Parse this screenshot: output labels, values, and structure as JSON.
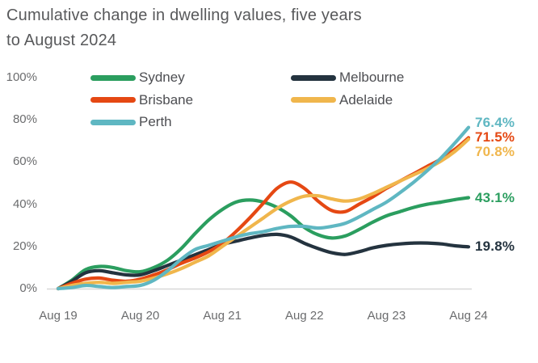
{
  "chart_data": {
    "type": "line",
    "title": "Cumulative change in dwelling values, five years to August 2024",
    "xlabel": "",
    "ylabel": "",
    "x_tick_labels": [
      "Aug 19",
      "Aug 20",
      "Aug 21",
      "Aug 22",
      "Aug 23",
      "Aug 24"
    ],
    "y_tick_labels": [
      "0%",
      "20%",
      "40%",
      "60%",
      "80%",
      "100%"
    ],
    "y_tick_values": [
      0,
      20,
      40,
      60,
      80,
      100
    ],
    "ylim": [
      0,
      100
    ],
    "x_span_years": 5,
    "grid": "baseline only",
    "legend_position": "top-left, two columns",
    "series": [
      {
        "name": "Sydney",
        "color": "#2b9e5f",
        "end_label": "43.1%",
        "end_value": 43.1,
        "values": [
          0,
          4,
          9,
          10.5,
          10,
          8.5,
          8,
          10,
          13.5,
          19,
          26,
          32.5,
          37.5,
          41,
          42,
          41,
          38.5,
          34.5,
          29,
          25.5,
          24,
          25,
          28,
          31.5,
          34.5,
          36.5,
          38.5,
          40,
          41,
          42.2,
          43.1
        ]
      },
      {
        "name": "Melbourne",
        "color": "#24333f",
        "end_label": "19.8%",
        "end_value": 19.8,
        "values": [
          0,
          3.5,
          7.5,
          8.5,
          7.5,
          6.5,
          6.5,
          8.5,
          11,
          13.5,
          16,
          18.5,
          21,
          22.5,
          24,
          25.2,
          25.7,
          24.5,
          21.5,
          19,
          17,
          16.2,
          17.5,
          19.3,
          20.5,
          21.2,
          21.6,
          21.6,
          21.2,
          20.3,
          19.8
        ]
      },
      {
        "name": "Brisbane",
        "color": "#e54813",
        "end_label": "71.5%",
        "end_value": 71.5,
        "values": [
          0,
          2.5,
          4.5,
          5,
          4,
          3.5,
          4.5,
          6.5,
          9,
          12,
          14.5,
          17.5,
          21.5,
          27,
          33.5,
          40.5,
          47.5,
          50.5,
          47.5,
          41.5,
          37,
          36.5,
          40,
          43.5,
          47.5,
          51,
          54.5,
          58,
          61.5,
          66,
          71.5
        ]
      },
      {
        "name": "Adelaide",
        "color": "#f0b64c",
        "end_label": "70.8%",
        "end_value": 70.8,
        "values": [
          0,
          1.5,
          2.5,
          3,
          2.5,
          3,
          3.5,
          5,
          7,
          9.5,
          12.5,
          15.5,
          20,
          24.5,
          29,
          33.5,
          38,
          41.5,
          43.8,
          44,
          42.5,
          41.5,
          42.5,
          45,
          48,
          51,
          54,
          57,
          60.5,
          65,
          70.8
        ]
      },
      {
        "name": "Perth",
        "color": "#5fb7c2",
        "end_label": "76.4%",
        "end_value": 76.4,
        "values": [
          0,
          0.5,
          1.5,
          1,
          0.5,
          1,
          1.5,
          4,
          8.5,
          14,
          18.5,
          20.5,
          22.5,
          24.5,
          26,
          27,
          28.5,
          29.5,
          29.5,
          28.7,
          29.5,
          31,
          34,
          37.5,
          41,
          45.5,
          50.5,
          56,
          62,
          69,
          76.4
        ]
      }
    ],
    "legend_order": [
      "Sydney",
      "Melbourne",
      "Brisbane",
      "Adelaide",
      "Perth"
    ],
    "colors": {
      "baseline": "#d8d8d8",
      "title_text": "#58595b",
      "axis_text": "#6b6c6e",
      "legend_text": "#4d4e52",
      "background": "#ffffff"
    }
  }
}
